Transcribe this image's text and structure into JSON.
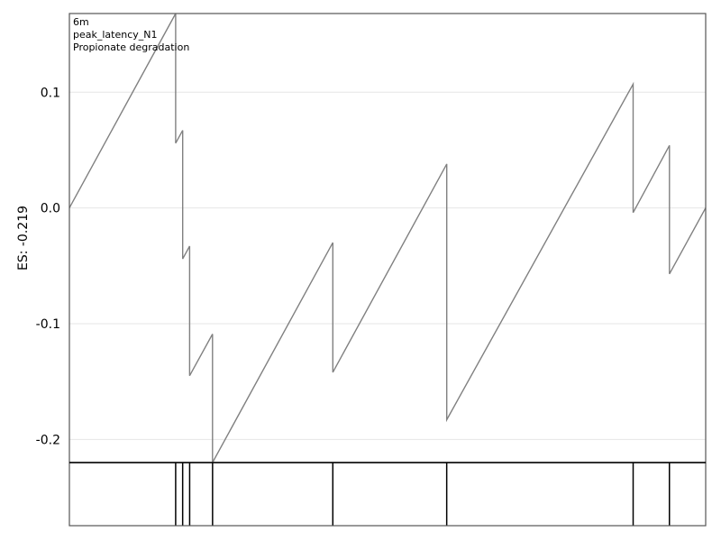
{
  "chart_data": {
    "type": "line",
    "ylabel": "ES: -0.219",
    "annotations": [
      "6m",
      "peak_latency_N1",
      "Propionate degradation"
    ],
    "ylim": [
      -0.22,
      0.168
    ],
    "xlim": [
      0,
      1
    ],
    "yticks": [
      0.1,
      0.0,
      -0.1,
      -0.2
    ],
    "ytick_labels": [
      "0.1",
      "0.0",
      "-0.1",
      "-0.2"
    ],
    "grid": true,
    "es_curve": {
      "x": [
        0.0,
        0.167,
        0.167,
        0.178,
        0.178,
        0.189,
        0.189,
        0.225,
        0.225,
        0.414,
        0.414,
        0.593,
        0.593,
        0.886,
        0.886,
        0.943,
        0.943,
        1.0
      ],
      "y": [
        0.0,
        0.168,
        0.056,
        0.067,
        -0.044,
        -0.033,
        -0.145,
        -0.109,
        -0.22,
        -0.03,
        -0.142,
        0.038,
        -0.183,
        0.107,
        -0.004,
        0.054,
        -0.057,
        0.0
      ]
    },
    "hit_positions": [
      0.167,
      0.178,
      0.189,
      0.225,
      0.414,
      0.593,
      0.886,
      0.943
    ]
  }
}
